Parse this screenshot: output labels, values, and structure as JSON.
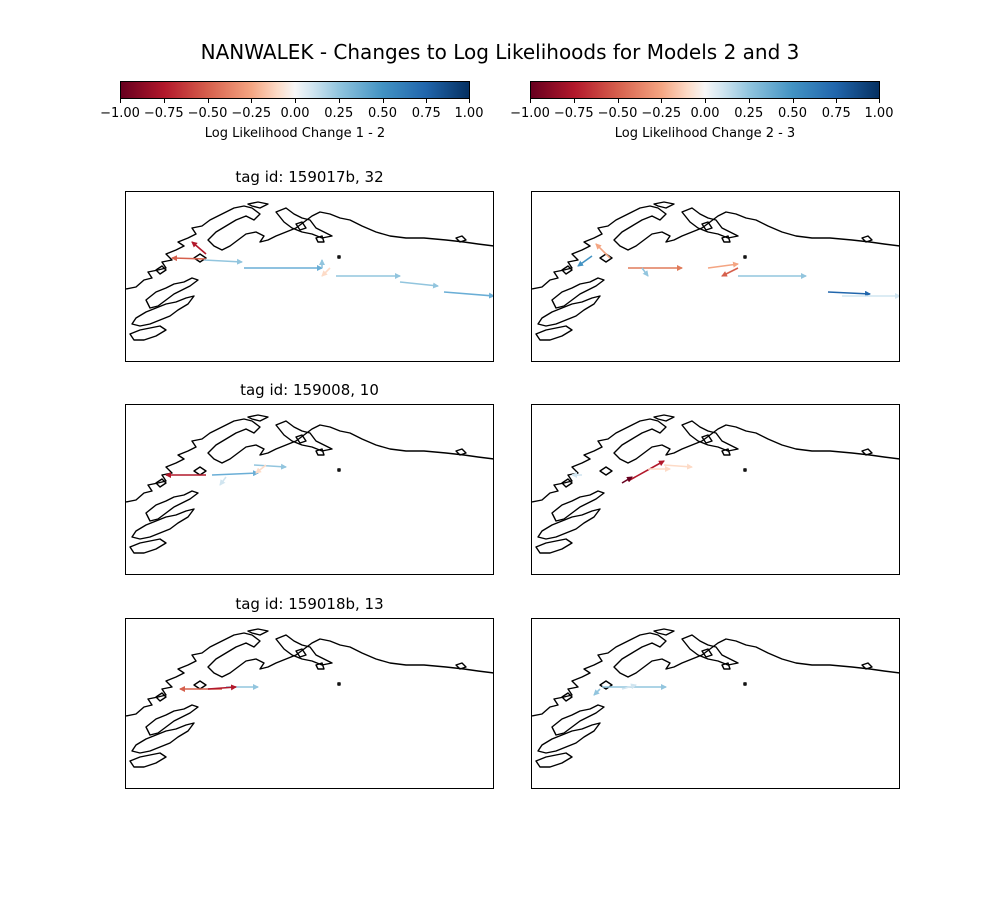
{
  "title": "NANWALEK - Changes to Log Likelihoods for Models 2 and 3",
  "colorbars": [
    {
      "label": "Log Likelihood Change 1 - 2",
      "ticks": [
        "−1.00",
        "−0.75",
        "−0.50",
        "−0.25",
        "0.00",
        "0.25",
        "0.50",
        "0.75",
        "1.00"
      ]
    },
    {
      "label": "Log Likelihood Change 2 - 3",
      "ticks": [
        "−1.00",
        "−0.75",
        "−0.50",
        "−0.25",
        "0.00",
        "0.25",
        "0.50",
        "0.75",
        "1.00"
      ]
    }
  ],
  "panels": [
    {
      "title": "tag id: 159017b, 32"
    },
    {
      "title": ""
    },
    {
      "title": "tag id: 159008, 10"
    },
    {
      "title": ""
    },
    {
      "title": "tag id: 159018b, 13"
    },
    {
      "title": ""
    }
  ],
  "colors": {
    "negative": "#b2182b",
    "neutral": "#f7f7f7",
    "positive": "#2166ac",
    "coastline": "#000000"
  }
}
